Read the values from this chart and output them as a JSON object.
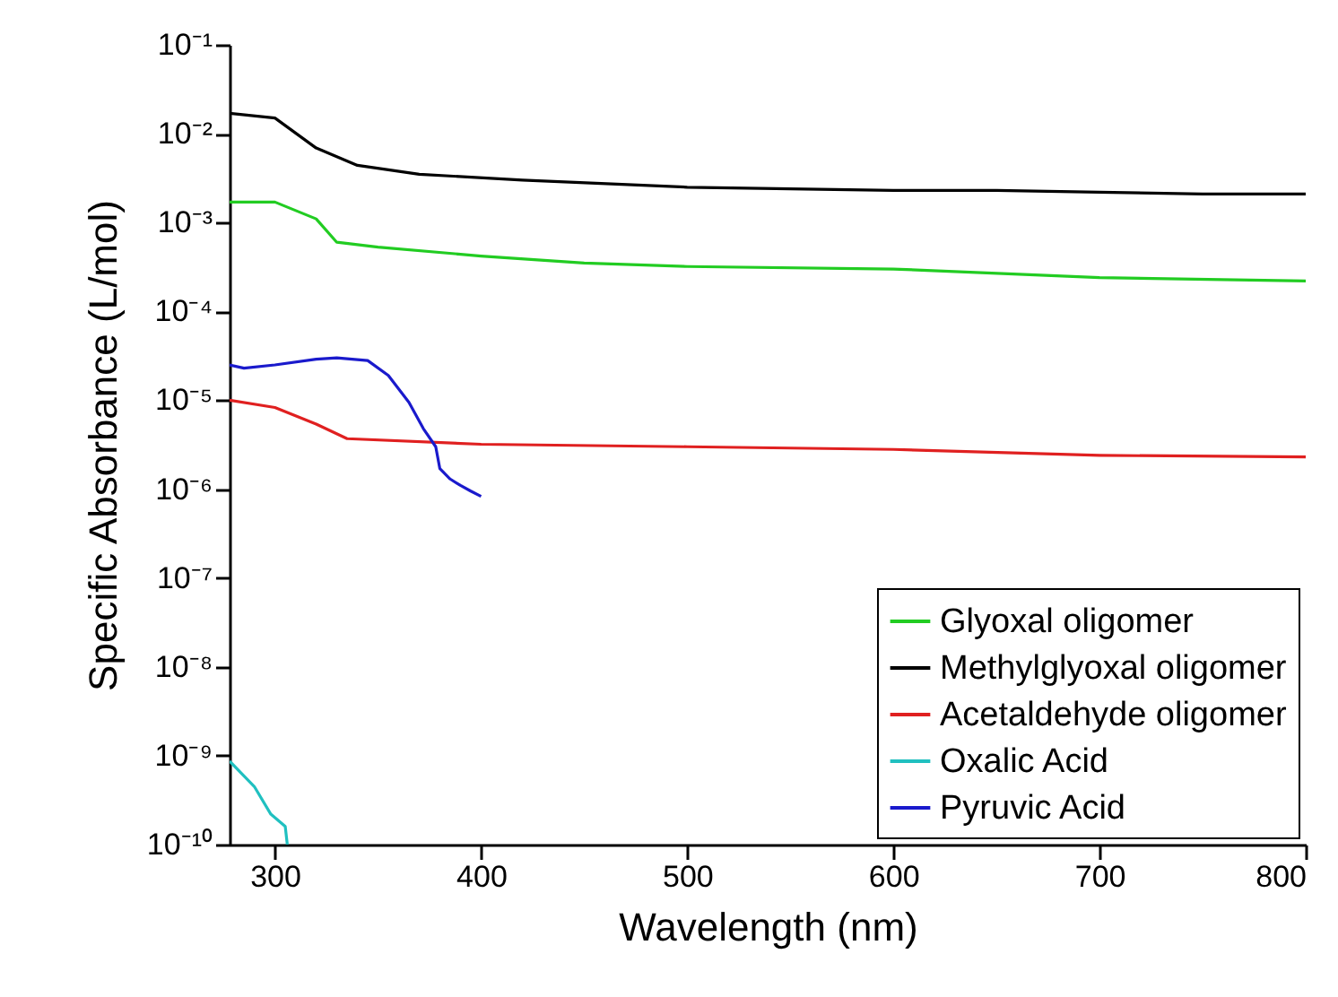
{
  "chart_data": {
    "type": "line",
    "xlabel": "Wavelength (nm)",
    "ylabel": "Specific Absorbance (L/mol)",
    "log": "y",
    "legend": "bottom right",
    "grid": false,
    "marker": "none",
    "line_style": "solid",
    "xlim": [
      278,
      800
    ],
    "xticks": [
      300,
      400,
      500,
      600,
      700,
      800
    ],
    "ylim": [
      1e-10,
      0.1
    ],
    "yticks": [
      {
        "value": 1e-10,
        "label": "10⁻¹⁰"
      },
      {
        "value": 1e-09,
        "label": "10⁻⁹"
      },
      {
        "value": 1e-08,
        "label": "10⁻⁸"
      },
      {
        "value": 1e-07,
        "label": "10⁻⁷"
      },
      {
        "value": 1e-06,
        "label": "10⁻⁶"
      },
      {
        "value": 1e-05,
        "label": "10⁻⁵"
      },
      {
        "value": 0.0001,
        "label": "10⁻⁴"
      },
      {
        "value": 0.001,
        "label": "10⁻³"
      },
      {
        "value": 0.01,
        "label": "10⁻²"
      },
      {
        "value": 0.1,
        "label": "10⁻¹"
      }
    ],
    "series": [
      {
        "name": "Glyoxal oligomer",
        "color": "#22cc22",
        "x": [
          278,
          300,
          320,
          330,
          350,
          400,
          450,
          500,
          600,
          700,
          800
        ],
        "values": [
          0.0017,
          0.0017,
          0.0011,
          0.0006,
          0.00053,
          0.00042,
          0.00035,
          0.00032,
          0.0003,
          0.00024,
          0.00022
        ]
      },
      {
        "name": "Methylglyoxal oligomer",
        "color": "#000000",
        "x": [
          278,
          300,
          320,
          340,
          370,
          420,
          500,
          550,
          600,
          650,
          700,
          750,
          800
        ],
        "values": [
          0.017,
          0.015,
          0.0069,
          0.0044,
          0.0035,
          0.003,
          0.0025,
          0.0024,
          0.0023,
          0.0023,
          0.0022,
          0.0021,
          0.0021
        ]
      },
      {
        "name": "Acetaldehyde oligomer",
        "color": "#e02020",
        "x": [
          278,
          300,
          320,
          335,
          400,
          500,
          600,
          700,
          800
        ],
        "values": [
          1e-05,
          8.3e-06,
          5.4e-06,
          3.7e-06,
          3.2e-06,
          3e-06,
          2.8e-06,
          2.4e-06,
          2.3e-06
        ]
      },
      {
        "name": "Oxalic Acid",
        "color": "#20c0c0",
        "x": [
          278,
          290,
          298,
          305,
          306
        ],
        "values": [
          8.7e-10,
          4.5e-10,
          2.2e-10,
          1.6e-10,
          1e-10
        ]
      },
      {
        "name": "Pyruvic Acid",
        "color": "#1a1acc",
        "x": [
          278,
          285,
          300,
          320,
          330,
          345,
          355,
          365,
          372,
          378,
          380,
          385,
          390,
          395,
          400
        ],
        "values": [
          2.5e-05,
          2.3e-05,
          2.5e-05,
          2.9e-05,
          3e-05,
          2.8e-05,
          1.9e-05,
          9.5e-06,
          4.8e-06,
          3e-06,
          1.7e-06,
          1.3e-06,
          1.1e-06,
          9.5e-07,
          8.3e-07
        ]
      }
    ]
  }
}
